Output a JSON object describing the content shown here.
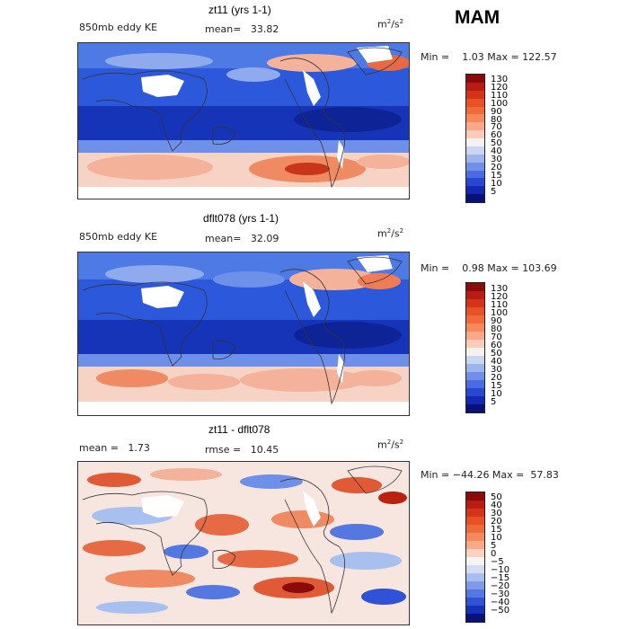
{
  "season": "MAM",
  "units_base": "m",
  "units_exp1": "2",
  "units_mid": "/s",
  "units_exp2": "2",
  "panels": [
    {
      "title": "zt11 (yrs 1-1)",
      "left_label": "850mb eddy KE",
      "stat_label": "mean=",
      "stat_value": "33.82",
      "range": "Min =    1.03 Max = 122.57",
      "colorbar_ticks": [
        "130",
        "120",
        "110",
        "100",
        "90",
        "80",
        "70",
        "60",
        "50",
        "40",
        "30",
        "20",
        "15",
        "10",
        "5"
      ],
      "colorbar_colors": [
        "#8b0a0a",
        "#b81c12",
        "#d6331b",
        "#e85026",
        "#f06b3a",
        "#f6895c",
        "#f9a987",
        "#fbcdb8",
        "#f4f1f1",
        "#c9d6f0",
        "#9db5ec",
        "#6f90e8",
        "#4a6ce0",
        "#2848d4",
        "#1428b4",
        "#08107a"
      ]
    },
    {
      "title": "dflt078 (yrs 1-1)",
      "left_label": "850mb eddy KE",
      "stat_label": "mean=",
      "stat_value": "32.09",
      "range": "Min =    0.98 Max = 103.69",
      "colorbar_ticks": [
        "130",
        "120",
        "110",
        "100",
        "90",
        "80",
        "70",
        "60",
        "50",
        "40",
        "30",
        "20",
        "15",
        "10",
        "5"
      ],
      "colorbar_colors": [
        "#8b0a0a",
        "#b81c12",
        "#d6331b",
        "#e85026",
        "#f06b3a",
        "#f6895c",
        "#f9a987",
        "#fbcdb8",
        "#f4f1f1",
        "#c9d6f0",
        "#9db5ec",
        "#6f90e8",
        "#4a6ce0",
        "#2848d4",
        "#1428b4",
        "#08107a"
      ]
    },
    {
      "title": "zt11 - dflt078",
      "left_label": "mean =",
      "left_value": "1.73",
      "stat_label": "rmse =",
      "stat_value": "10.45",
      "range": "Min = −44.26 Max =  57.83",
      "colorbar_ticks": [
        "50",
        "40",
        "30",
        "20",
        "15",
        "10",
        "5",
        "0",
        "−5",
        "−10",
        "−15",
        "−20",
        "−30",
        "−40",
        "−50"
      ],
      "colorbar_colors": [
        "#8b0a0a",
        "#b81c12",
        "#d6331b",
        "#e85026",
        "#f06b3a",
        "#f6895c",
        "#f9a987",
        "#fbd2c0",
        "#f6f3f3",
        "#d3dcf1",
        "#a9bdee",
        "#7f9ae9",
        "#5577e2",
        "#2f52d6",
        "#1630b8",
        "#08107a"
      ]
    }
  ],
  "colors": {
    "deep_blue": "#1a3fd0",
    "mid_blue": "#3e6ee2",
    "light_blue": "#a8c0f0",
    "pale": "#f2ecea",
    "light_red": "#f4b29a",
    "red": "#e05a36",
    "dark_red": "#b8220f"
  }
}
